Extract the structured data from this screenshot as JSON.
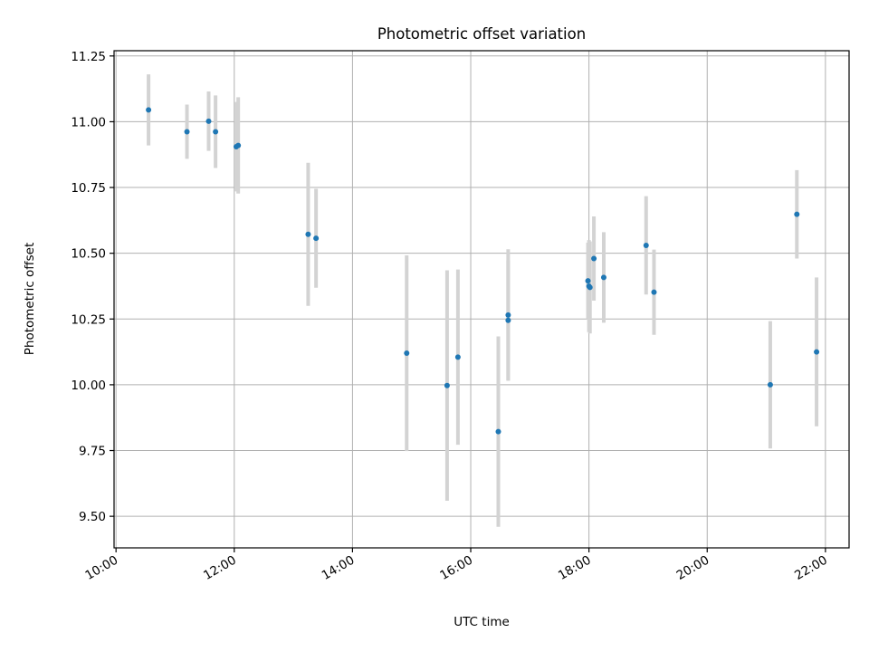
{
  "chart_data": {
    "type": "scatter",
    "title": "Photometric offset variation",
    "xlabel": "UTC time",
    "ylabel": "Photometric offset",
    "x_ticks": [
      "10:00",
      "12:00",
      "14:00",
      "16:00",
      "18:00",
      "20:00",
      "22:00"
    ],
    "y_ticks": [
      "9.50",
      "9.75",
      "10.00",
      "10.25",
      "10.50",
      "10.75",
      "11.00",
      "11.25"
    ],
    "xlim": [
      "09:58",
      "22:24"
    ],
    "ylim": [
      9.38,
      11.27
    ],
    "grid": true,
    "series": [
      {
        "points": [
          {
            "x": "10:33",
            "y": 11.045,
            "err": 0.135
          },
          {
            "x": "11:12",
            "y": 10.962,
            "err": 0.103
          },
          {
            "x": "11:34",
            "y": 11.002,
            "err": 0.113
          },
          {
            "x": "11:41",
            "y": 10.962,
            "err": 0.138
          },
          {
            "x": "12:02",
            "y": 10.905,
            "err": 0.17
          },
          {
            "x": "12:04",
            "y": 10.91,
            "err": 0.183
          },
          {
            "x": "13:15",
            "y": 10.572,
            "err": 0.272
          },
          {
            "x": "13:23",
            "y": 10.557,
            "err": 0.188
          },
          {
            "x": "14:55",
            "y": 10.12,
            "err": 0.372
          },
          {
            "x": "15:36",
            "y": 9.997,
            "err": 0.438
          },
          {
            "x": "15:47",
            "y": 10.105,
            "err": 0.333
          },
          {
            "x": "16:28",
            "y": 9.822,
            "err": 0.362
          },
          {
            "x": "16:38",
            "y": 10.265,
            "err": 0.25
          },
          {
            "x": "16:38",
            "y": 10.245,
            "err": 0.228
          },
          {
            "x": "17:59",
            "y": 10.395,
            "err": 0.145
          },
          {
            "x": "18:00",
            "y": 10.375,
            "err": 0.175
          },
          {
            "x": "18:01",
            "y": 10.37,
            "err": 0.175
          },
          {
            "x": "18:05",
            "y": 10.48,
            "err": 0.16
          },
          {
            "x": "18:15",
            "y": 10.408,
            "err": 0.172
          },
          {
            "x": "18:58",
            "y": 10.53,
            "err": 0.187
          },
          {
            "x": "19:06",
            "y": 10.352,
            "err": 0.162
          },
          {
            "x": "21:04",
            "y": 10.0,
            "err": 0.242
          },
          {
            "x": "21:31",
            "y": 10.648,
            "err": 0.168
          },
          {
            "x": "21:51",
            "y": 10.125,
            "err": 0.283
          }
        ]
      }
    ]
  }
}
